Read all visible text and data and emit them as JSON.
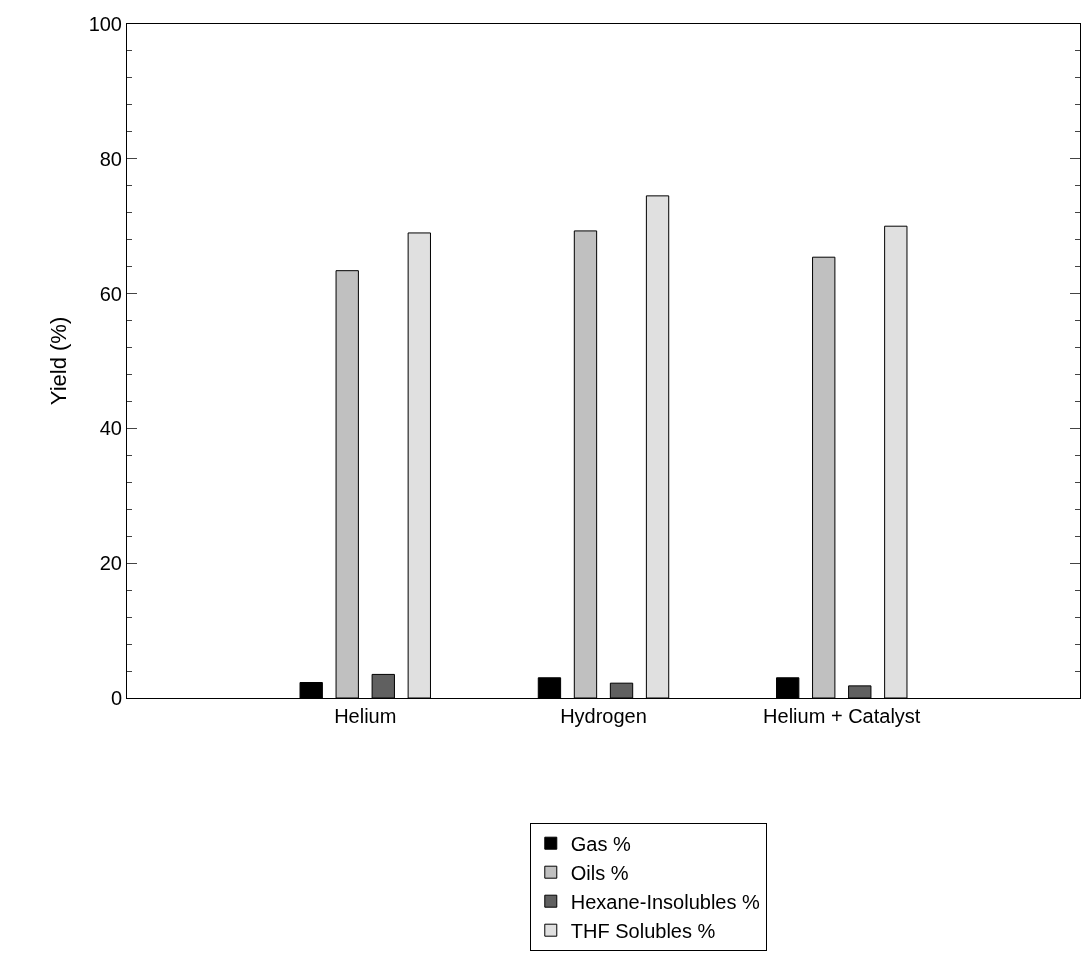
{
  "chart_data": {
    "type": "bar",
    "ylabel": "Yield (%)",
    "categories": [
      "Helium",
      "Hydrogen",
      "Helium + Catalyst"
    ],
    "series": [
      {
        "name": "Gas %",
        "color": "#000000",
        "values": [
          2.3,
          3.0,
          3.0
        ]
      },
      {
        "name": "Oils %",
        "color": "#c0c0c0",
        "values": [
          63.4,
          69.3,
          65.4
        ]
      },
      {
        "name": "Hexane-Insolubles %",
        "color": "#606060",
        "values": [
          3.5,
          2.2,
          1.8
        ]
      },
      {
        "name": "THF Solubles %",
        "color": "#e0e0e0",
        "values": [
          69.0,
          74.5,
          70.0
        ]
      }
    ],
    "ylim": [
      0,
      100
    ],
    "yticks": [
      0,
      20,
      40,
      60,
      80,
      100
    ],
    "legend": "bottom"
  }
}
